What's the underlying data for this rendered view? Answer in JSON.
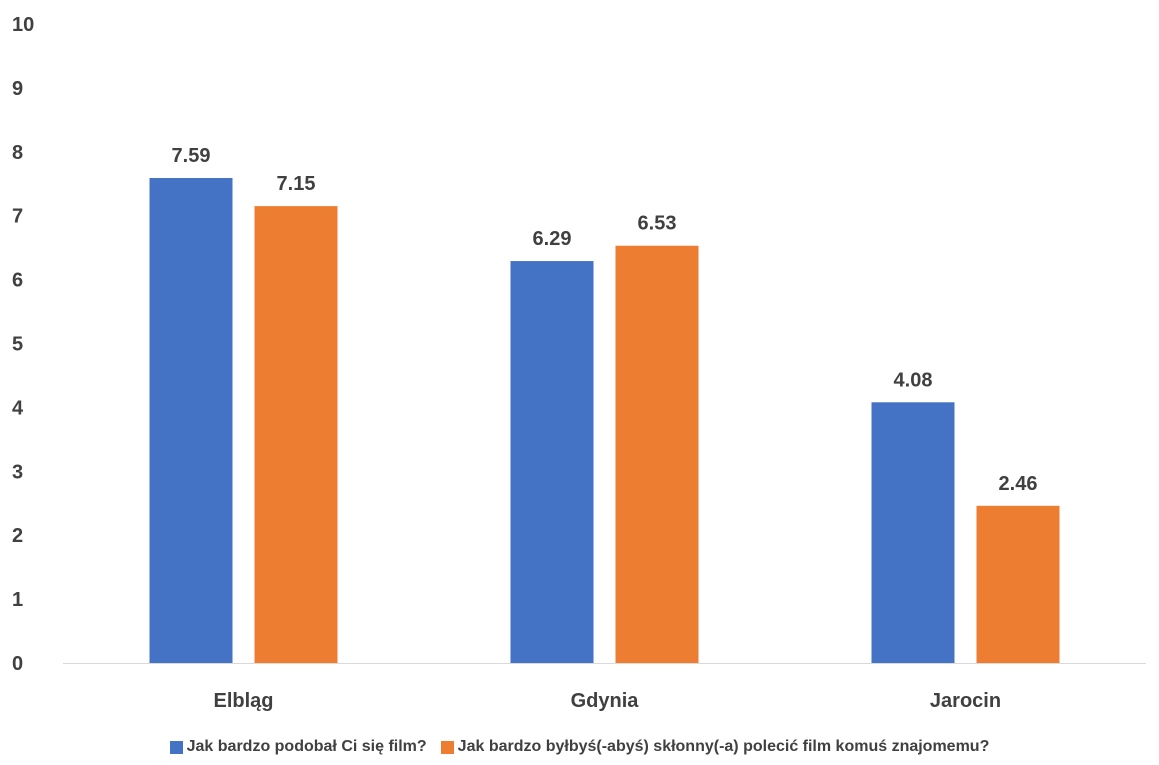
{
  "chart_data": {
    "type": "bar",
    "categories": [
      "Elbląg",
      "Gdynia",
      "Jarocin"
    ],
    "series": [
      {
        "name": "Jak bardzo podobał Ci się film?",
        "values": [
          7.59,
          6.29,
          4.08
        ],
        "labels": [
          "7.59",
          "6.29",
          "4.08"
        ],
        "color": "#4472C4"
      },
      {
        "name": "Jak bardzo byłbyś(-abyś) skłonny(-a) polecić film komuś znajomemu?",
        "values": [
          7.15,
          6.53,
          2.46
        ],
        "labels": [
          "7.15",
          "6.53",
          "2.46"
        ],
        "color": "#ED7D31"
      }
    ],
    "yticks": [
      "0",
      "1",
      "2",
      "3",
      "4",
      "5",
      "6",
      "7",
      "8",
      "9",
      "10"
    ],
    "ylim": [
      0,
      10
    ],
    "grid": false,
    "legend_position": "bottom"
  }
}
